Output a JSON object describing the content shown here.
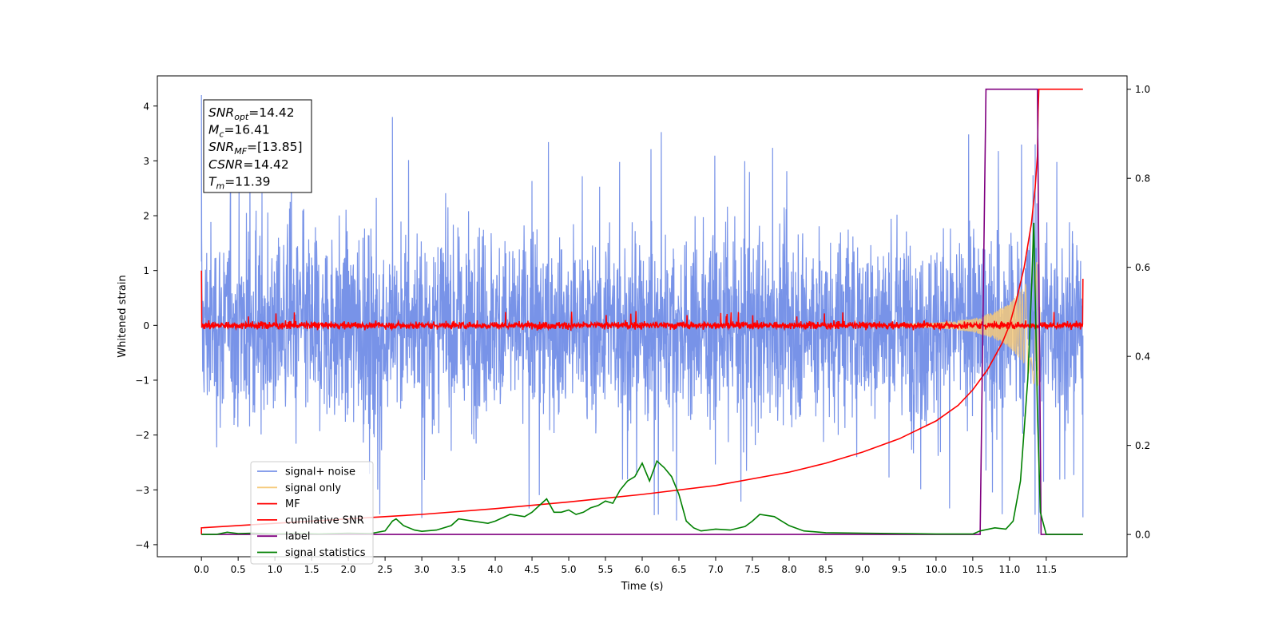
{
  "chart_data": {
    "type": "line",
    "xlabel": "Time (s)",
    "ylabel": "Whitened strain",
    "xlim": [
      -0.6,
      12.6
    ],
    "ylim": [
      -4.22,
      4.55
    ],
    "y2lim": [
      -0.05,
      1.03
    ],
    "x_ticks": [
      0.0,
      0.5,
      1.0,
      1.5,
      2.0,
      2.5,
      3.0,
      3.5,
      4.0,
      4.5,
      5.0,
      5.5,
      6.0,
      6.5,
      7.0,
      7.5,
      8.0,
      8.5,
      9.0,
      9.5,
      10.0,
      10.5,
      11.0,
      11.5
    ],
    "x_tick_labels": [
      "0.0",
      "0.5",
      "1.0",
      "1.5",
      "2.0",
      "2.5",
      "3.0",
      "3.5",
      "4.0",
      "4.5",
      "5.0",
      "5.5",
      "6.0",
      "6.5",
      "7.0",
      "7.5",
      "8.0",
      "8.5",
      "9.0",
      "9.5",
      "10.0",
      "10.5",
      "11.0",
      "11.5"
    ],
    "y_ticks": [
      -4,
      -3,
      -2,
      -1,
      0,
      1,
      2,
      3,
      4
    ],
    "y_tick_labels": [
      "−4",
      "−3",
      "−2",
      "−1",
      "0",
      "1",
      "2",
      "3",
      "4"
    ],
    "y2_ticks": [
      0.0,
      0.2,
      0.4,
      0.6,
      0.8,
      1.0
    ],
    "y2_tick_labels": [
      "0.0",
      "0.2",
      "0.4",
      "0.6",
      "0.8",
      "1.0"
    ],
    "legend_position": "lower-left",
    "series": [
      {
        "name": "signal+ noise",
        "axis": "left",
        "color": "#7893e8",
        "description": "dense noise between about -2.5 and +2.5, spikes up to 4.2 and down to -3.8",
        "x_range": [
          0.0,
          12.0
        ],
        "envelope": [
          -2.5,
          2.5
        ],
        "peaks": [
          {
            "x": 0.0,
            "y": 4.2
          },
          {
            "x": 2.6,
            "y": 3.8
          },
          {
            "x": 11.35,
            "y": 3.3
          },
          {
            "x": 11.4,
            "y": -3.8
          },
          {
            "x": 12.0,
            "y": -3.5
          }
        ]
      },
      {
        "name": "signal only",
        "axis": "left",
        "color": "#f5c97a",
        "description": "chirp growing in amplitude before merger",
        "x": [
          9.5,
          10.0,
          10.5,
          10.8,
          11.0,
          11.2,
          11.3,
          11.39,
          11.42,
          12.0
        ],
        "amplitude": [
          0.02,
          0.05,
          0.12,
          0.25,
          0.4,
          0.7,
          1.0,
          1.2,
          0.0,
          0.0
        ]
      },
      {
        "name": "MF",
        "axis": "left",
        "color": "#ff0000",
        "description": "matched-filter output, small fluctuation around 0",
        "x_range": [
          0.0,
          12.0
        ],
        "envelope": [
          -0.12,
          0.12
        ],
        "edges": [
          {
            "x": 0.0,
            "y": 1.0
          },
          {
            "x": 12.0,
            "y": 0.85
          }
        ]
      },
      {
        "name": "cumilative SNR",
        "axis": "right",
        "color": "#ff0000",
        "x": [
          0.0,
          0.0,
          1.0,
          2.0,
          3.0,
          4.0,
          5.0,
          6.0,
          7.0,
          8.0,
          8.5,
          9.0,
          9.5,
          10.0,
          10.3,
          10.5,
          10.7,
          10.9,
          11.0,
          11.1,
          11.2,
          11.3,
          11.35,
          11.38,
          11.39,
          11.4,
          12.0
        ],
        "values": [
          0.0,
          0.015,
          0.025,
          0.035,
          0.045,
          0.058,
          0.073,
          0.09,
          0.11,
          0.14,
          0.16,
          0.185,
          0.215,
          0.255,
          0.29,
          0.325,
          0.37,
          0.43,
          0.47,
          0.53,
          0.6,
          0.7,
          0.78,
          0.85,
          0.95,
          1.0,
          1.0
        ]
      },
      {
        "name": "label",
        "axis": "right",
        "color": "#800080",
        "x": [
          0.0,
          10.6,
          10.68,
          11.38,
          11.43,
          12.0
        ],
        "values": [
          0.0,
          0.0,
          1.0,
          1.0,
          0.0,
          0.0
        ]
      },
      {
        "name": "signal statistics",
        "axis": "right",
        "color": "#008000",
        "x": [
          0.0,
          0.2,
          0.35,
          0.5,
          0.7,
          1.0,
          1.3,
          1.6,
          2.0,
          2.3,
          2.5,
          2.6,
          2.65,
          2.75,
          2.9,
          3.0,
          3.2,
          3.4,
          3.5,
          3.7,
          3.9,
          4.0,
          4.2,
          4.4,
          4.5,
          4.6,
          4.7,
          4.8,
          4.9,
          5.0,
          5.1,
          5.2,
          5.3,
          5.4,
          5.5,
          5.6,
          5.7,
          5.8,
          5.9,
          6.0,
          6.1,
          6.2,
          6.3,
          6.4,
          6.5,
          6.6,
          6.7,
          6.8,
          7.0,
          7.2,
          7.4,
          7.5,
          7.6,
          7.8,
          7.9,
          8.0,
          8.2,
          8.5,
          9.0,
          9.5,
          10.0,
          10.5,
          10.6,
          10.8,
          10.95,
          11.05,
          11.15,
          11.25,
          11.3,
          11.33,
          11.36,
          11.38,
          11.42,
          11.5,
          12.0
        ],
        "values": [
          0.0,
          0.0,
          0.005,
          0.002,
          0.003,
          0.001,
          0.002,
          0.001,
          0.003,
          0.002,
          0.008,
          0.03,
          0.035,
          0.02,
          0.01,
          0.007,
          0.01,
          0.02,
          0.035,
          0.03,
          0.025,
          0.03,
          0.045,
          0.04,
          0.05,
          0.065,
          0.08,
          0.05,
          0.05,
          0.055,
          0.045,
          0.05,
          0.06,
          0.065,
          0.075,
          0.07,
          0.1,
          0.12,
          0.13,
          0.16,
          0.12,
          0.165,
          0.15,
          0.13,
          0.09,
          0.03,
          0.015,
          0.008,
          0.012,
          0.01,
          0.018,
          0.03,
          0.045,
          0.04,
          0.03,
          0.02,
          0.008,
          0.004,
          0.003,
          0.002,
          0.001,
          0.001,
          0.008,
          0.015,
          0.012,
          0.03,
          0.12,
          0.35,
          0.55,
          0.7,
          0.45,
          0.28,
          0.05,
          0.0,
          0.0
        ]
      }
    ],
    "annotation": [
      {
        "symbol": "SNR",
        "sub": "opt",
        "value": "=14.42"
      },
      {
        "symbol": "M",
        "sub": "c",
        "value": "=16.41"
      },
      {
        "symbol": "SNR",
        "sub": "MF",
        "value": "=[13.85]"
      },
      {
        "symbol": "CSNR",
        "sub": "",
        "value": "=14.42"
      },
      {
        "symbol": "T",
        "sub": "m",
        "value": "=11.39"
      }
    ]
  }
}
